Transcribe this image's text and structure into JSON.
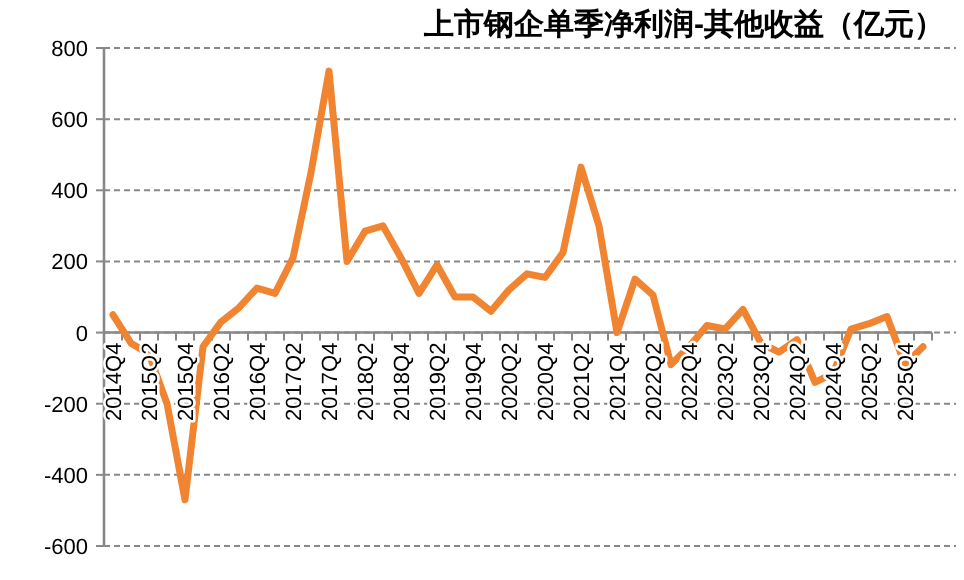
{
  "chart_data": {
    "type": "line",
    "title": "上市钢企单季净利润-其他收益（亿元）",
    "categories": [
      "2014Q4",
      null,
      "2015Q2",
      null,
      "2015Q4",
      null,
      "2016Q2",
      null,
      "2016Q4",
      null,
      "2017Q2",
      null,
      "2017Q4",
      null,
      "2018Q2",
      null,
      "2018Q4",
      null,
      "2019Q2",
      null,
      "2019Q4",
      null,
      "2020Q2",
      null,
      "2020Q4",
      null,
      "2021Q2",
      null,
      "2021Q4",
      null,
      "2022Q2",
      null,
      "2022Q4",
      null,
      "2023Q2",
      null,
      "2023Q4",
      null,
      "2024Q2",
      null,
      "2024Q4",
      null,
      "2025Q2",
      null,
      "2025Q4",
      null
    ],
    "values": [
      50,
      -30,
      -60,
      -200,
      -470,
      -40,
      30,
      70,
      125,
      110,
      210,
      450,
      735,
      200,
      285,
      300,
      210,
      110,
      190,
      100,
      100,
      60,
      120,
      165,
      155,
      225,
      465,
      300,
      0,
      150,
      105,
      -90,
      -40,
      20,
      10,
      65,
      -30,
      -55,
      -20,
      -140,
      -115,
      10,
      25,
      45,
      -90,
      -40
    ],
    "color": "#f08430",
    "ylim": [
      -600,
      800
    ],
    "yticks": [
      -600,
      -400,
      -200,
      0,
      200,
      400,
      600,
      800
    ],
    "grid": "y"
  }
}
